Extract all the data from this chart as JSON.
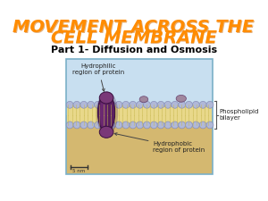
{
  "title_line1": "MOVEMENT ACROSS THE",
  "title_line2": "CELL MEMBRANE",
  "subtitle": "Part 1- Diffusion and Osmosis",
  "title_color": "#FF8C00",
  "title_shadow_color": "#CC6600",
  "subtitle_color": "#000000",
  "bg_color": "#FFFFFF",
  "diagram_bg": "#c8dff0",
  "diagram_border": "#7ab0c8",
  "membrane_yellow": "#e8d88a",
  "membrane_stripe": "#c8b850",
  "head_color": "#b0b8d8",
  "protein_dark": "#5a2060",
  "protein_mid": "#7a3080",
  "sand_color": "#d4b870",
  "label_hydrophilic": "Hydrophilic\nregion of protein",
  "label_hydrophobic": "Hydrophobic\nregion of protein",
  "label_bilayer": "Phospholipid\nbilayer",
  "label_scale": "5 nm",
  "title_fontsize": 14,
  "subtitle_fontsize": 8,
  "annotation_fontsize": 5
}
